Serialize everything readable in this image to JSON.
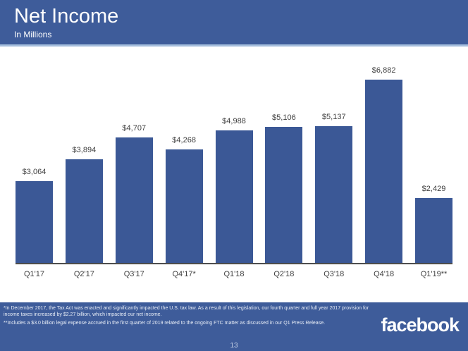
{
  "header": {
    "title": "Net Income",
    "subtitle": "In Millions"
  },
  "chart_data": {
    "type": "bar",
    "title": "Net Income",
    "subtitle": "In Millions",
    "categories": [
      "Q1'17",
      "Q2'17",
      "Q3'17",
      "Q4'17*",
      "Q1'18",
      "Q2'18",
      "Q3'18",
      "Q4'18",
      "Q1'19**"
    ],
    "values": [
      3064,
      3894,
      4707,
      4268,
      4988,
      5106,
      5137,
      6882,
      2429
    ],
    "value_labels": [
      "$3,064",
      "$3,894",
      "$4,707",
      "$4,268",
      "$4,988",
      "$5,106",
      "$5,137",
      "$6,882",
      "$2,429"
    ],
    "xlabel": "",
    "ylabel": "",
    "ylim": [
      0,
      6882
    ],
    "grid": false,
    "legend": "none",
    "bar_color": "#3b5896",
    "label_color": "#404040"
  },
  "footer": {
    "footnote1": "*In December 2017, the Tax Act was enacted and significantly impacted the U.S. tax law. As a result of this legislation, our fourth quarter and full year 2017 provision for income taxes increased by $2.27 billion, which impacted our net income.",
    "footnote2": "**Includes a $3.0 billion legal expense accrued in the first quarter of 2019 related to the ongoing FTC matter as discussed in our Q1 Press Release.",
    "logo_text": "facebook",
    "page_number": "13"
  },
  "colors": {
    "header_bg": "#3e5c9a",
    "footer_bg": "#3e5c9a",
    "divider": "#a5bedd",
    "bar": "#3b5896",
    "axis": "#4d4d4d",
    "footnote_text": "#e9eef7",
    "page_number_text": "#c2cee4"
  }
}
